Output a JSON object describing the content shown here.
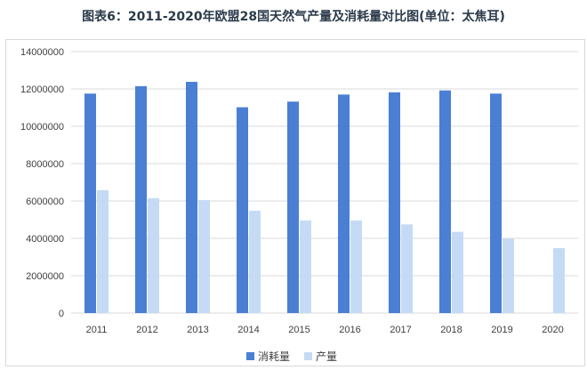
{
  "title": "图表6：2011-2020年欧盟28国天然气产量及消耗量对比图(单位：太焦耳)",
  "chart_data": {
    "type": "bar",
    "title": "图表6：2011-2020年欧盟28国天然气产量及消耗量对比图(单位：太焦耳)",
    "categories": [
      "2011",
      "2012",
      "2013",
      "2014",
      "2015",
      "2016",
      "2017",
      "2018",
      "2019",
      "2020"
    ],
    "series": [
      {
        "name": "消耗量",
        "color": "#4a7fd4",
        "values": [
          11750000,
          12150000,
          12380000,
          11020000,
          11320000,
          11700000,
          11820000,
          11920000,
          11750000,
          null
        ]
      },
      {
        "name": "产量",
        "color": "#c5dbf5",
        "values": [
          6580000,
          6150000,
          6050000,
          5480000,
          4960000,
          4960000,
          4750000,
          4350000,
          3980000,
          3480000
        ]
      }
    ],
    "yticks": [
      "0",
      "2000000",
      "4000000",
      "6000000",
      "8000000",
      "10000000",
      "12000000",
      "14000000"
    ],
    "ylim": [
      0,
      14000000
    ],
    "grid": true,
    "legend_position": "bottom"
  }
}
